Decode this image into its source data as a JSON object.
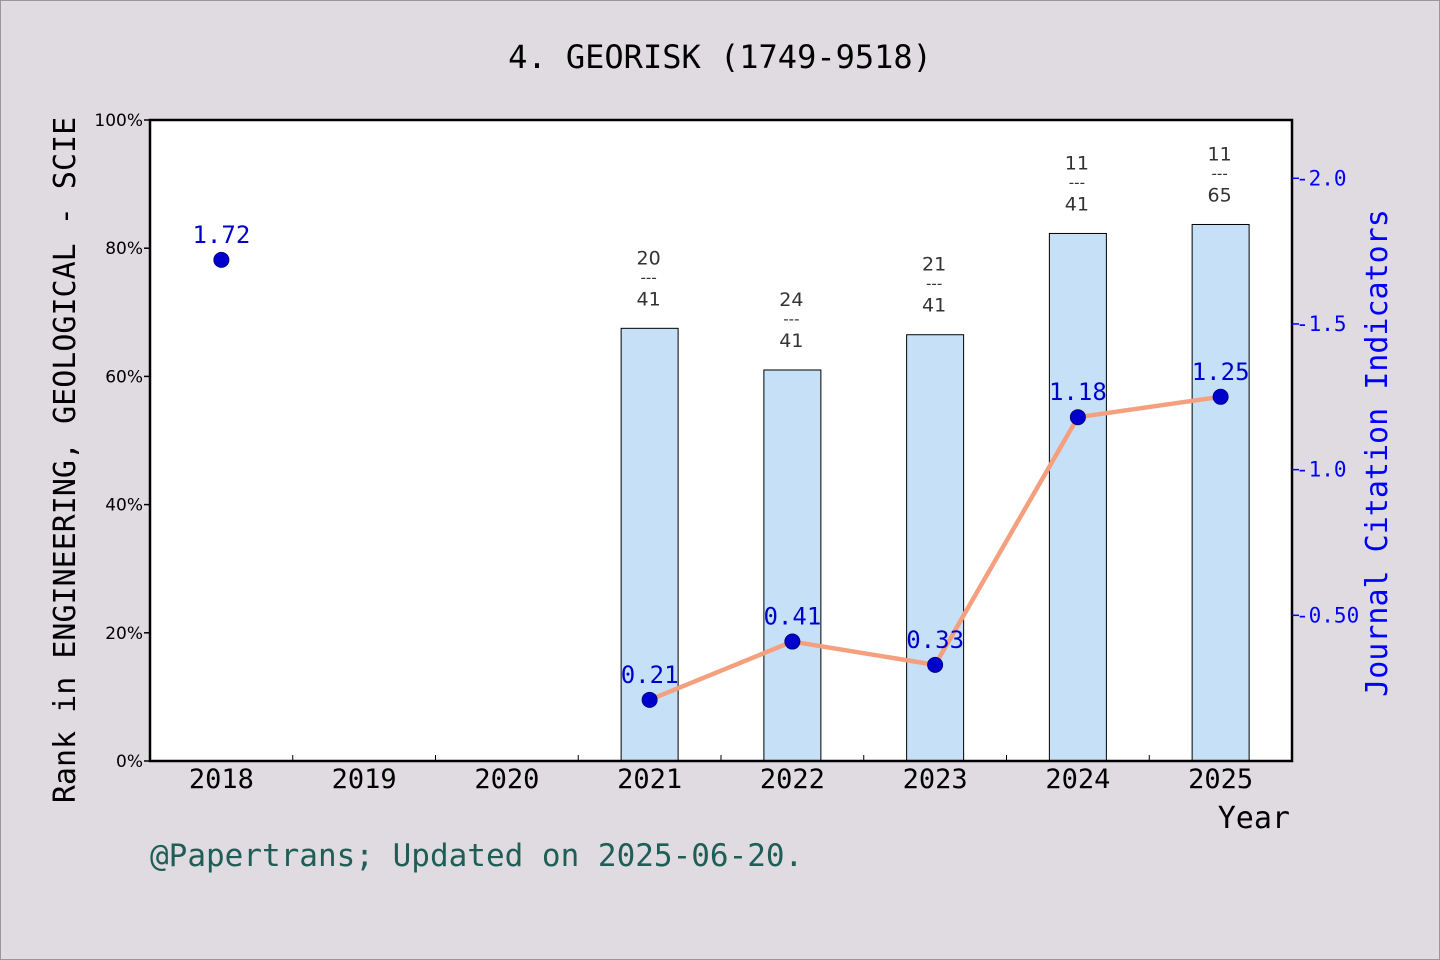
{
  "chart_data": {
    "type": "bar",
    "title": "4. GEORISK (1749-9518)",
    "xlabel": "Year",
    "ylabel_left": "Rank in ENGINEERING, GEOLOGICAL - SCIE",
    "ylabel_right": "Journal Citation Indicators",
    "categories": [
      "2018",
      "2019",
      "2020",
      "2021",
      "2022",
      "2023",
      "2024",
      "2025"
    ],
    "ylim_left": [
      0,
      100
    ],
    "left_ticks": [
      "0%",
      "20%",
      "40%",
      "60%",
      "80%",
      "100%"
    ],
    "left_tick_values": [
      0,
      20,
      40,
      60,
      80,
      100
    ],
    "right_ticks": [
      "0.50",
      "1.0",
      "1.5",
      "2.0"
    ],
    "right_tick_values": [
      0.5,
      1.0,
      1.5,
      2.0
    ],
    "ylim_right": [
      0,
      2.2
    ],
    "bars": [
      {
        "year": "2021",
        "rank": "20",
        "total": "41",
        "percent": 67.5
      },
      {
        "year": "2022",
        "rank": "24",
        "total": "41",
        "percent": 61.0
      },
      {
        "year": "2023",
        "rank": "21",
        "total": "41",
        "percent": 66.5
      },
      {
        "year": "2024",
        "rank": "11",
        "total": "41",
        "percent": 82.3
      },
      {
        "year": "2025",
        "rank": "11",
        "total": "65",
        "percent": 83.7
      }
    ],
    "bar_separator": "---",
    "jci": [
      {
        "year": "2018",
        "value": 1.72,
        "label": "1.72",
        "connected": false
      },
      {
        "year": "2021",
        "value": 0.21,
        "label": "0.21",
        "connected": true
      },
      {
        "year": "2022",
        "value": 0.41,
        "label": "0.41",
        "connected": true
      },
      {
        "year": "2023",
        "value": 0.33,
        "label": "0.33",
        "connected": true
      },
      {
        "year": "2024",
        "value": 1.18,
        "label": "1.18",
        "connected": true
      },
      {
        "year": "2025",
        "value": 1.25,
        "label": "1.25",
        "connected": true
      }
    ],
    "grid": false,
    "colors": {
      "bar_fill": "#c6e0f7",
      "bar_stroke": "#000000",
      "line": "#f4a07e",
      "marker": "#0000cc",
      "jci_label": "#0000cc",
      "right_axis": "#0000ff",
      "footer": "#1e5e56",
      "background": "#dfdbe0"
    }
  },
  "footer": "@Papertrans; Updated on 2025-06-20."
}
